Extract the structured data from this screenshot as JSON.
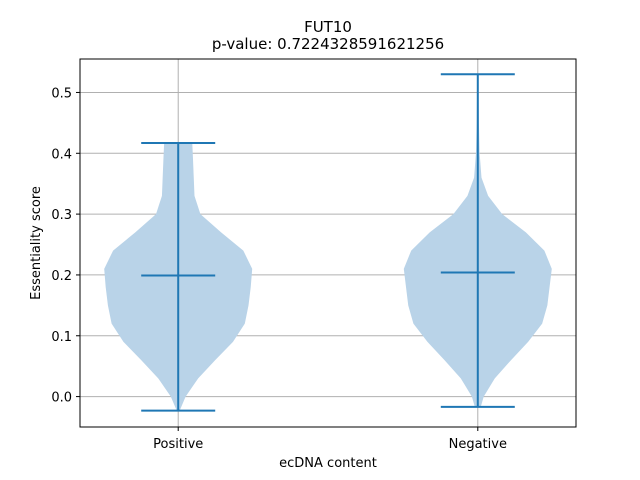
{
  "chart_data": {
    "type": "violin",
    "title": "FUT10",
    "subtitle": "p-value: 0.7224328591621256",
    "xlabel": "ecDNA content",
    "ylabel": "Essentiality score",
    "categories": [
      "Positive",
      "Negative"
    ],
    "ylim": [
      -0.05,
      0.555
    ],
    "yticks": [
      0.0,
      0.1,
      0.2,
      0.3,
      0.4,
      0.5
    ],
    "ytick_labels": [
      "0.0",
      "0.1",
      "0.2",
      "0.3",
      "0.4",
      "0.5"
    ],
    "grid": true,
    "fill_color": "#b9d3e8",
    "line_color": "#1f77b4",
    "series": [
      {
        "min": -0.023,
        "median": 0.199,
        "max": 0.417,
        "density": [
          [
            -0.023,
            0.02
          ],
          [
            0.0,
            0.1
          ],
          [
            0.03,
            0.27
          ],
          [
            0.06,
            0.5
          ],
          [
            0.09,
            0.74
          ],
          [
            0.12,
            0.9
          ],
          [
            0.15,
            0.95
          ],
          [
            0.18,
            0.98
          ],
          [
            0.21,
            1.0
          ],
          [
            0.24,
            0.88
          ],
          [
            0.27,
            0.58
          ],
          [
            0.3,
            0.3
          ],
          [
            0.33,
            0.22
          ],
          [
            0.36,
            0.21
          ],
          [
            0.39,
            0.2
          ],
          [
            0.417,
            0.19
          ]
        ]
      },
      {
        "min": -0.017,
        "median": 0.204,
        "max": 0.53,
        "density": [
          [
            -0.017,
            0.04
          ],
          [
            0.0,
            0.08
          ],
          [
            0.03,
            0.23
          ],
          [
            0.06,
            0.45
          ],
          [
            0.09,
            0.68
          ],
          [
            0.12,
            0.87
          ],
          [
            0.15,
            0.94
          ],
          [
            0.18,
            0.97
          ],
          [
            0.21,
            1.0
          ],
          [
            0.24,
            0.9
          ],
          [
            0.27,
            0.65
          ],
          [
            0.3,
            0.33
          ],
          [
            0.33,
            0.14
          ],
          [
            0.36,
            0.05
          ],
          [
            0.4,
            0.025
          ],
          [
            0.45,
            0.015
          ],
          [
            0.5,
            0.01
          ],
          [
            0.53,
            0.005
          ]
        ]
      }
    ]
  }
}
